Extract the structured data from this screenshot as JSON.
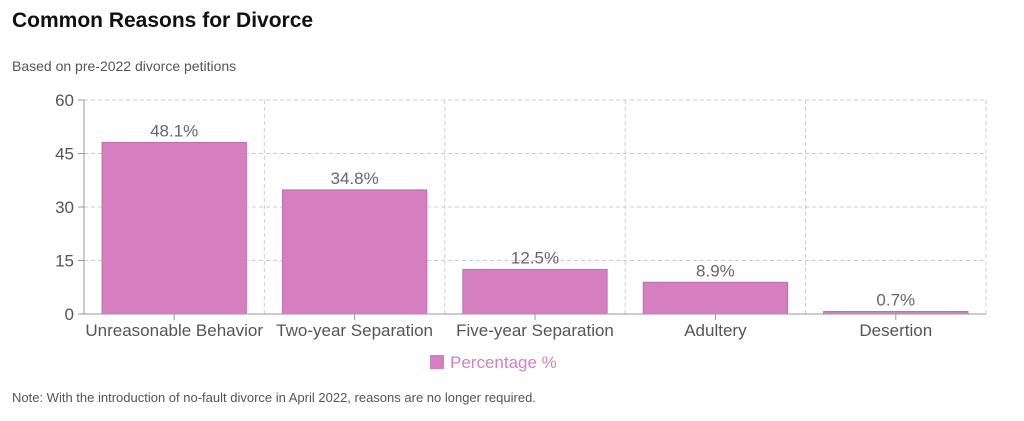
{
  "header": {
    "title": "Common Reasons for Divorce",
    "subtitle": "Based on pre-2022 divorce petitions"
  },
  "footer": {
    "note": "Note: With the introduction of no-fault divorce in April 2022, reasons are no longer required."
  },
  "colors": {
    "bar": "#d57fc0",
    "bar_border": "#c56bb1",
    "grid": "#cccccc",
    "legend_text": "#d57fc0"
  },
  "chart_data": {
    "type": "bar",
    "categories": [
      "Unreasonable Behavior",
      "Two-year Separation",
      "Five-year Separation",
      "Adultery",
      "Desertion"
    ],
    "series": [
      {
        "name": "Percentage %",
        "values": [
          48.1,
          34.8,
          12.5,
          8.9,
          0.7
        ]
      }
    ],
    "data_labels": [
      "48.1%",
      "34.8%",
      "12.5%",
      "8.9%",
      "0.7%"
    ],
    "yticks": [
      0,
      15,
      30,
      45,
      60
    ],
    "ylim": [
      0,
      60
    ],
    "grid": true,
    "legend_position": "bottom-center"
  }
}
